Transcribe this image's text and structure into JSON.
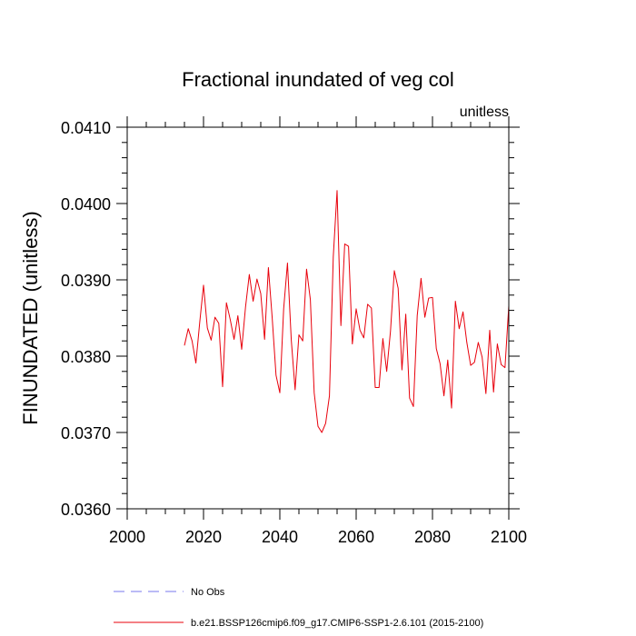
{
  "chart_data": {
    "type": "line",
    "title": "Fractional inundated of veg col",
    "units_label": "unitless",
    "ylabel": "FINUNDATED  (unitless)",
    "xlabel": "",
    "xlim": [
      2000,
      2100
    ],
    "ylim": [
      0.036,
      0.041
    ],
    "x_ticks": [
      2000,
      2020,
      2040,
      2060,
      2080,
      2100
    ],
    "x_tick_labels": [
      "2000",
      "2020",
      "2040",
      "2060",
      "2080",
      "2100"
    ],
    "y_ticks": [
      0.036,
      0.037,
      0.038,
      0.039,
      0.04,
      0.041
    ],
    "y_tick_labels": [
      "0.0360",
      "0.0370",
      "0.0380",
      "0.0390",
      "0.0400",
      "0.0410"
    ],
    "grid": false,
    "legend_position": "bottom",
    "series": [
      {
        "name": "b.e21.BSSP126cmip6.f09_g17.CMIP6-SSP1-2.6.101 (2015-2100)",
        "color": "#e8000b",
        "style": "solid",
        "x": [
          2015,
          2016,
          2017,
          2018,
          2019,
          2020,
          2021,
          2022,
          2023,
          2024,
          2025,
          2026,
          2027,
          2028,
          2029,
          2030,
          2031,
          2032,
          2033,
          2034,
          2035,
          2036,
          2037,
          2038,
          2039,
          2040,
          2041,
          2042,
          2043,
          2044,
          2045,
          2046,
          2047,
          2048,
          2049,
          2050,
          2051,
          2052,
          2053,
          2054,
          2055,
          2056,
          2057,
          2058,
          2059,
          2060,
          2061,
          2062,
          2063,
          2064,
          2065,
          2066,
          2067,
          2068,
          2069,
          2070,
          2071,
          2072,
          2073,
          2074,
          2075,
          2076,
          2077,
          2078,
          2079,
          2080,
          2081,
          2082,
          2083,
          2084,
          2085,
          2086,
          2087,
          2088,
          2089,
          2090,
          2091,
          2092,
          2093,
          2094,
          2095,
          2096,
          2097,
          2098,
          2099,
          2100
        ],
        "values": [
          0.03814,
          0.03836,
          0.0382,
          0.03791,
          0.03844,
          0.03893,
          0.03837,
          0.03821,
          0.03851,
          0.03843,
          0.0376,
          0.0387,
          0.03848,
          0.03822,
          0.03853,
          0.03809,
          0.03864,
          0.03907,
          0.03872,
          0.03901,
          0.03882,
          0.03822,
          0.03916,
          0.0385,
          0.03775,
          0.03752,
          0.03862,
          0.03922,
          0.03821,
          0.03756,
          0.03828,
          0.0382,
          0.03914,
          0.03874,
          0.03752,
          0.03708,
          0.037,
          0.03712,
          0.03748,
          0.0393,
          0.04017,
          0.0384,
          0.03947,
          0.03944,
          0.03816,
          0.03862,
          0.03834,
          0.03824,
          0.03868,
          0.03863,
          0.03759,
          0.03759,
          0.03823,
          0.0378,
          0.03833,
          0.03912,
          0.03889,
          0.03782,
          0.03855,
          0.03745,
          0.03734,
          0.03853,
          0.03902,
          0.03851,
          0.03876,
          0.03877,
          0.0381,
          0.0379,
          0.03748,
          0.03795,
          0.03732,
          0.03872,
          0.03836,
          0.03858,
          0.03818,
          0.03788,
          0.03792,
          0.03818,
          0.03799,
          0.03751,
          0.03834,
          0.03753,
          0.03816,
          0.03789,
          0.03785,
          0.03866
        ]
      },
      {
        "name": "No Obs",
        "color": "#7777ee",
        "style": "dashed",
        "x": [],
        "values": []
      }
    ]
  }
}
